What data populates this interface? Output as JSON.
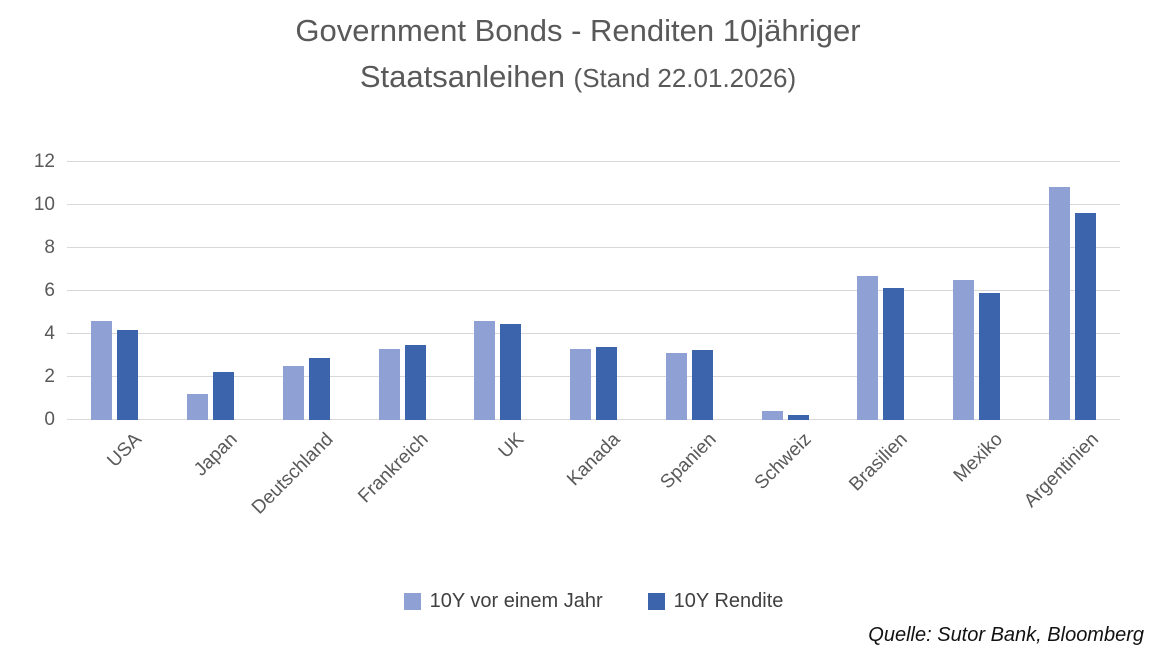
{
  "title": {
    "line1": "Government Bonds - Renditen 10jähriger",
    "line2_main": "Staatsanleihen ",
    "line2_sub": "(Stand 22.01.2026)"
  },
  "source": "Quelle: Sutor Bank, Bloomberg",
  "colors": {
    "series1": "#8FA0D4",
    "series2": "#3C64AC",
    "gridline": "#D8D8D8",
    "axis_text": "#595959",
    "title_text": "#595959",
    "legend_text": "#404040"
  },
  "chart_data": {
    "type": "bar",
    "title": "Government Bonds - Renditen 10jähriger Staatsanleihen (Stand 22.01.2026)",
    "categories": [
      "USA",
      "Japan",
      "Deutschland",
      "Frankreich",
      "UK",
      "Kanada",
      "Spanien",
      "Schweiz",
      "Brasilien",
      "Mexiko",
      "Argentinien"
    ],
    "series": [
      {
        "name": "10Y vor einem Jahr",
        "color": "#8FA0D4",
        "values": [
          4.6,
          1.2,
          2.5,
          3.3,
          4.6,
          3.3,
          3.1,
          0.4,
          6.7,
          6.5,
          10.85
        ]
      },
      {
        "name": "10Y Rendite",
        "color": "#3C64AC",
        "values": [
          4.2,
          2.25,
          2.9,
          3.5,
          4.45,
          3.4,
          3.25,
          0.25,
          6.15,
          5.9,
          9.65
        ]
      }
    ],
    "xlabel": "",
    "ylabel": "",
    "ylim": [
      0,
      12
    ],
    "yticks": [
      0,
      2,
      4,
      6,
      8,
      10,
      12
    ],
    "grid": true,
    "legend_position": "bottom"
  }
}
